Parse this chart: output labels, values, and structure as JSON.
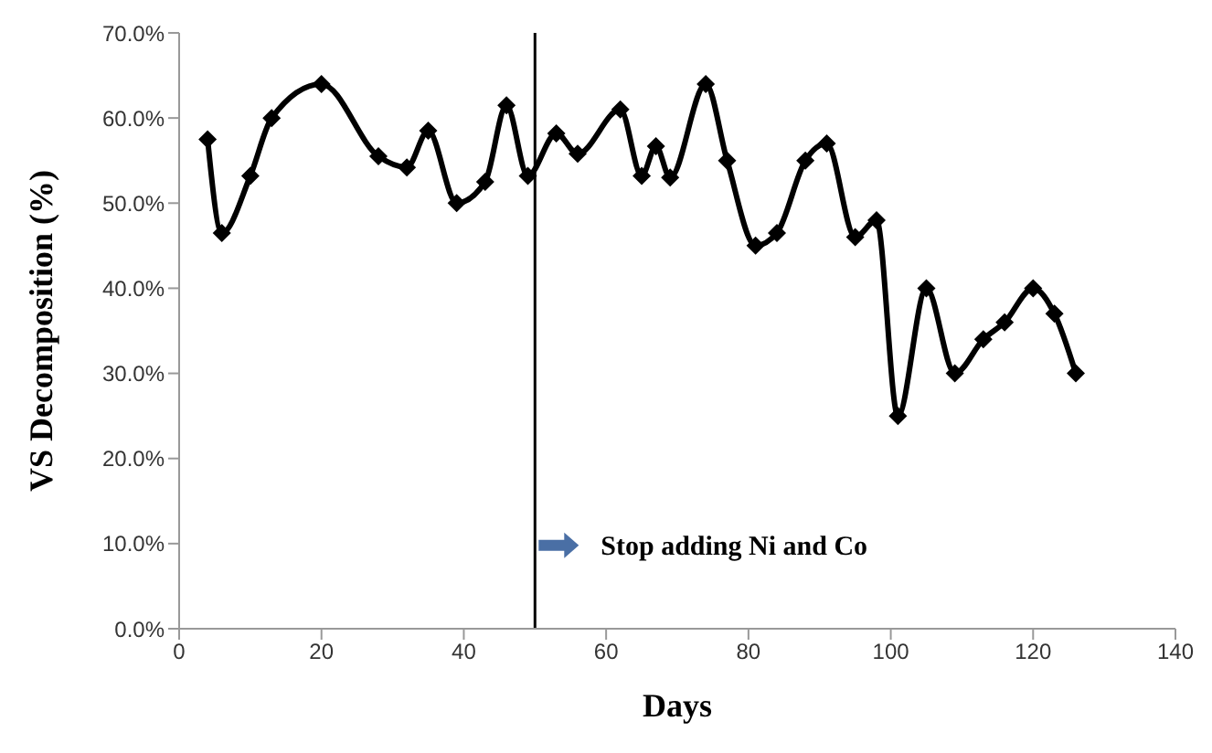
{
  "chart_data": {
    "type": "line",
    "xlabel": "Days",
    "ylabel": "VS Decomposition (%)",
    "x": [
      4,
      6,
      10,
      13,
      20,
      28,
      32,
      35,
      39,
      43,
      46,
      49,
      53,
      56,
      62,
      65,
      67,
      69,
      74,
      77,
      81,
      84,
      88,
      91,
      95,
      98,
      101,
      105,
      109,
      113,
      116,
      120,
      123,
      126
    ],
    "series": [
      {
        "color": "#000000",
        "values": [
          57.5,
          46.5,
          53.2,
          60,
          64,
          55.5,
          54.2,
          58.5,
          50,
          52.5,
          61.5,
          53.2,
          58.2,
          55.8,
          61,
          53.2,
          56.7,
          53,
          64,
          55,
          45,
          46.5,
          55,
          57,
          46,
          48,
          25,
          40,
          30,
          34,
          36,
          40,
          37,
          30
        ]
      }
    ],
    "xlim": [
      0,
      140
    ],
    "xticks": [
      0,
      20,
      40,
      60,
      80,
      100,
      120,
      140
    ],
    "ylim": [
      0,
      70
    ],
    "yticks": [
      {
        "value": 0,
        "label": "0.0%"
      },
      {
        "value": 10,
        "label": "10.0%"
      },
      {
        "value": 20,
        "label": "20.0%"
      },
      {
        "value": 30,
        "label": "30.0%"
      },
      {
        "value": 40,
        "label": "40.0%"
      },
      {
        "value": 50,
        "label": "50.0%"
      },
      {
        "value": 60,
        "label": "60.0%"
      },
      {
        "value": 70,
        "label": "70.0%"
      }
    ],
    "ref_lines": [
      {
        "axis": "x",
        "value": 50,
        "label": "Stop adding Ni and Co",
        "color": "#000000"
      }
    ],
    "marker": "diamond",
    "line_style": "solid",
    "grid": false,
    "legend": false
  }
}
